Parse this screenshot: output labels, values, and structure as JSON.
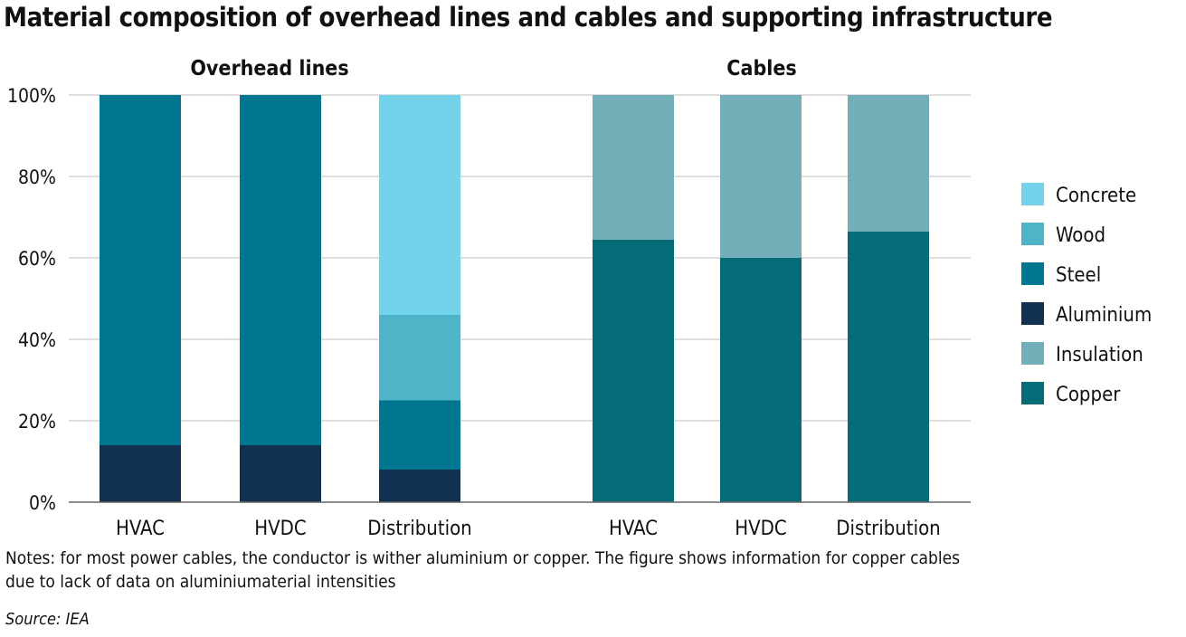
{
  "title": "Material composition of overhead lines and cables and supporting infrastructure",
  "notes": "Notes: for most power cables, the conductor is wither aluminium or copper. The figure shows information for copper cables due to lack of data on aluminiumaterial intensities",
  "source": "Source: IEA",
  "colors": {
    "Concrete": "#72d3eb",
    "Wood": "#4fb4c8",
    "Steel": "#007690",
    "Aluminium": "#123150",
    "Insulation": "#72afb9",
    "Copper": "#046b77",
    "gridline": "#cccccc",
    "axis": "#666666"
  },
  "chart_data": {
    "type": "bar",
    "stacked": true,
    "groups": [
      {
        "label": "Overhead lines",
        "categories": [
          "HVAC",
          "HVDC",
          "Distribution"
        ],
        "series": [
          {
            "name": "Aluminium",
            "values": [
              14,
              14,
              8
            ]
          },
          {
            "name": "Steel",
            "values": [
              86,
              86,
              17
            ]
          },
          {
            "name": "Wood",
            "values": [
              0,
              0,
              21
            ]
          },
          {
            "name": "Concrete",
            "values": [
              0,
              0,
              54
            ]
          }
        ]
      },
      {
        "label": "Cables",
        "categories": [
          "HVAC",
          "HVDC",
          "Distribution"
        ],
        "series": [
          {
            "name": "Copper",
            "values": [
              64.5,
              60,
              66.5
            ]
          },
          {
            "name": "Insulation",
            "values": [
              35.5,
              40,
              33.5
            ]
          }
        ]
      }
    ],
    "yticks": [
      "0%",
      "20%",
      "40%",
      "60%",
      "80%",
      "100%"
    ],
    "ylim": [
      0,
      100
    ],
    "ylabel": "",
    "xlabel": "",
    "legend": {
      "position": "right",
      "items": [
        "Concrete",
        "Wood",
        "Steel",
        "Aluminium",
        "Insulation",
        "Copper"
      ]
    },
    "grid": true
  }
}
